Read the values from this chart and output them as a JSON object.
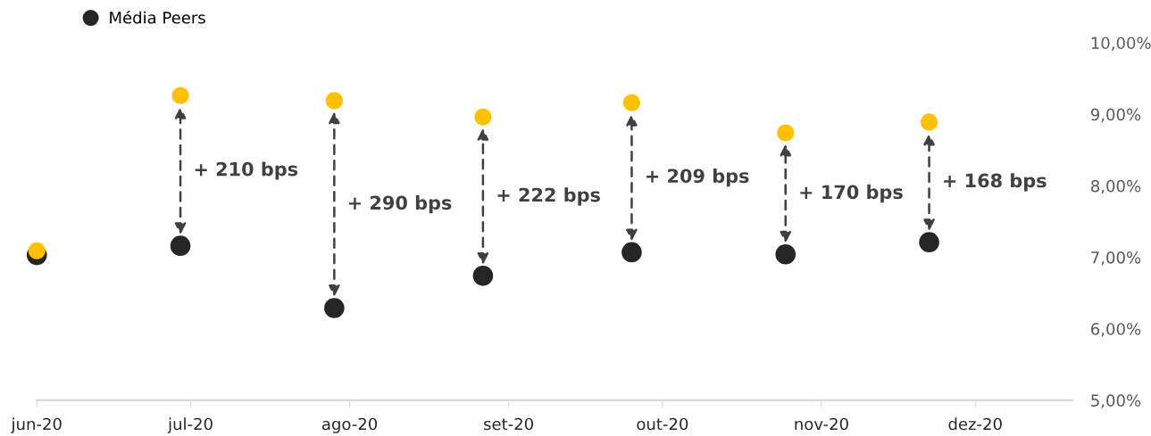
{
  "chart_data": {
    "type": "scatter",
    "x": [
      "2020-06-01",
      "2020-06-29",
      "2020-07-29",
      "2020-08-27",
      "2020-09-25",
      "2020-10-25",
      "2020-11-22"
    ],
    "series": [
      {
        "name": "Média Peers",
        "color": "#262626",
        "values": [
          7.03,
          7.16,
          6.29,
          6.74,
          7.07,
          7.04,
          7.21
        ]
      },
      {
        "color": "#ffc000",
        "values": [
          7.09,
          9.26,
          9.19,
          8.96,
          9.16,
          8.74,
          8.89
        ]
      }
    ],
    "xlim": [
      "2020-06-01",
      "2020-12-20"
    ],
    "xticks": [
      {
        "value": "2020-06-01",
        "label": "jun-20"
      },
      {
        "value": "2020-07-01",
        "label": "jul-20"
      },
      {
        "value": "2020-08-01",
        "label": "ago-20"
      },
      {
        "value": "2020-09-01",
        "label": "set-20"
      },
      {
        "value": "2020-10-01",
        "label": "out-20"
      },
      {
        "value": "2020-11-01",
        "label": "nov-20"
      },
      {
        "value": "2020-12-01",
        "label": "dez-20"
      }
    ],
    "ylim": [
      5,
      10
    ],
    "yticks": [
      {
        "value": 5,
        "label": "5,00%"
      },
      {
        "value": 6,
        "label": "6,00%"
      },
      {
        "value": 7,
        "label": "7,00%"
      },
      {
        "value": 8,
        "label": "8,00%"
      },
      {
        "value": 9,
        "label": "9,00%"
      },
      {
        "value": 10,
        "label": "10,00%"
      }
    ],
    "annotations": [
      "+ 210 bps",
      "+ 290 bps",
      "+ 222 bps",
      "+ 209 bps",
      "+ 170 bps",
      "+ 168 bps"
    ],
    "marker": "circle",
    "grid": false,
    "legend": "top left"
  }
}
